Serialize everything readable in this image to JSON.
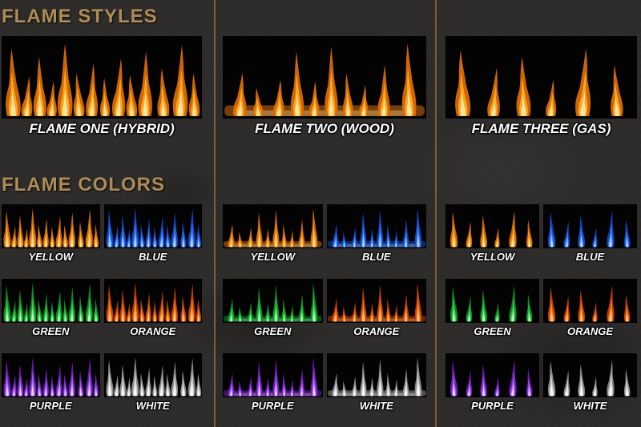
{
  "theme": {
    "background": "#2d2c2a",
    "heading_color": "#ae8c57",
    "divider_color": "#7b6136",
    "caption_color": "#ffffff",
    "thumb_background": "#030303"
  },
  "headings": {
    "flame_styles": "FLAME STYLES",
    "flame_colors": "FLAME COLORS"
  },
  "flame_palette": {
    "fire": {
      "body": "#d96c07",
      "mid": "#ffa41c",
      "core": "#ffe9a6"
    },
    "yellow": {
      "body": "#d96c07",
      "mid": "#ffa41c",
      "core": "#ffe9a6"
    },
    "blue": {
      "body": "#1248c9",
      "mid": "#3b82f6",
      "core": "#b9dcff"
    },
    "green": {
      "body": "#0f8f24",
      "mid": "#31d04a",
      "core": "#c2f7c6"
    },
    "orange": {
      "body": "#c43e05",
      "mid": "#fb7f17",
      "core": "#ffcf92"
    },
    "purple": {
      "body": "#6d1fb8",
      "mid": "#a85df2",
      "core": "#ecd4ff"
    },
    "white": {
      "body": "#8f8f8f",
      "mid": "#d6d6d6",
      "core": "#ffffff"
    }
  },
  "columns": [
    {
      "id": "flame-one",
      "style": "hybrid",
      "caption": "FLAME ONE (HYBRID)",
      "colors": [
        {
          "key": "yellow",
          "label": "YELLOW"
        },
        {
          "key": "blue",
          "label": "BLUE"
        },
        {
          "key": "green",
          "label": "GREEN"
        },
        {
          "key": "orange",
          "label": "ORANGE"
        },
        {
          "key": "purple",
          "label": "PURPLE"
        },
        {
          "key": "white",
          "label": "WHITE"
        }
      ]
    },
    {
      "id": "flame-two",
      "style": "wood",
      "caption": "FLAME TWO (WOOD)",
      "colors": [
        {
          "key": "yellow",
          "label": "YELLOW"
        },
        {
          "key": "blue",
          "label": "BLUE"
        },
        {
          "key": "green",
          "label": "GREEN"
        },
        {
          "key": "orange",
          "label": "ORANGE"
        },
        {
          "key": "purple",
          "label": "PURPLE"
        },
        {
          "key": "white",
          "label": "WHITE"
        }
      ]
    },
    {
      "id": "flame-three",
      "style": "gas",
      "caption": "FLAME THREE (GAS)",
      "colors": [
        {
          "key": "yellow",
          "label": "YELLOW"
        },
        {
          "key": "blue",
          "label": "BLUE"
        },
        {
          "key": "green",
          "label": "GREEN"
        },
        {
          "key": "orange",
          "label": "ORANGE"
        },
        {
          "key": "purple",
          "label": "PURPLE"
        },
        {
          "key": "white",
          "label": "WHITE"
        }
      ]
    }
  ]
}
